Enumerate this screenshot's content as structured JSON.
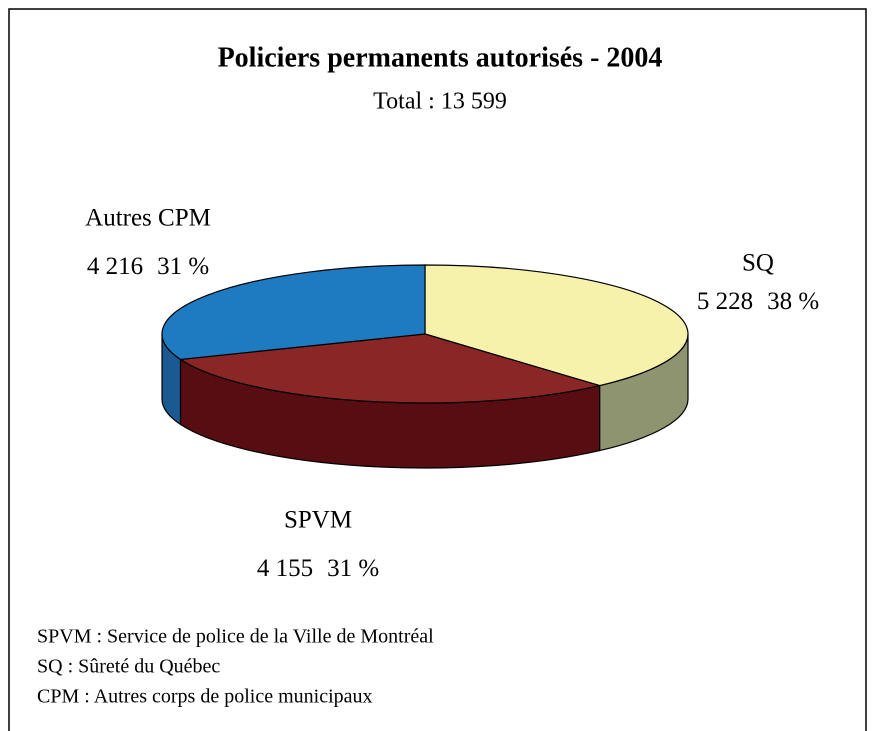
{
  "chart_data": {
    "type": "pie3d",
    "title": "Policiers permanents autorisés - 2004",
    "subtitle": "Total : 13 599",
    "categories": [
      "SQ",
      "SPVM",
      "Autres CPM"
    ],
    "values": [
      5228,
      4155,
      4216
    ],
    "value_labels": [
      "5 228",
      "4 155",
      "4 216"
    ],
    "percent": [
      38,
      31,
      31
    ],
    "percent_labels": [
      "38 %",
      "31 %",
      "31 %"
    ],
    "colors": [
      "#f6f2ab",
      "#8b2626",
      "#1f7bc1"
    ],
    "side_colors": [
      "#8e9370",
      "#570d12",
      "#195a92"
    ],
    "notes": [
      "SPVM : Service de police de la Ville de Montréal",
      "SQ : Sûreté du Québec",
      "CPM : Autres corps de police municipaux"
    ]
  }
}
